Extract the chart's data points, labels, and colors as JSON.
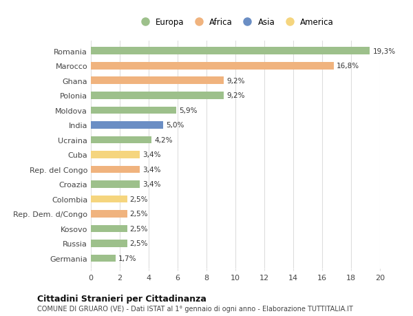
{
  "categories": [
    "Romania",
    "Marocco",
    "Ghana",
    "Polonia",
    "Moldova",
    "India",
    "Ucraina",
    "Cuba",
    "Rep. del Congo",
    "Croazia",
    "Colombia",
    "Rep. Dem. d/Congo",
    "Kosovo",
    "Russia",
    "Germania"
  ],
  "values": [
    19.3,
    16.8,
    9.2,
    9.2,
    5.9,
    5.0,
    4.2,
    3.4,
    3.4,
    3.4,
    2.5,
    2.5,
    2.5,
    2.5,
    1.7
  ],
  "labels": [
    "19,3%",
    "16,8%",
    "9,2%",
    "9,2%",
    "5,9%",
    "5,0%",
    "4,2%",
    "3,4%",
    "3,4%",
    "3,4%",
    "2,5%",
    "2,5%",
    "2,5%",
    "2,5%",
    "1,7%"
  ],
  "continent": [
    "Europa",
    "Africa",
    "Africa",
    "Europa",
    "Europa",
    "Asia",
    "Europa",
    "America",
    "Africa",
    "Europa",
    "America",
    "Africa",
    "Europa",
    "Europa",
    "Europa"
  ],
  "colors": {
    "Europa": "#9dc08b",
    "Africa": "#f0b37e",
    "Asia": "#6b8ec4",
    "America": "#f5d57e"
  },
  "legend_order": [
    "Europa",
    "Africa",
    "Asia",
    "America"
  ],
  "title": "Cittadini Stranieri per Cittadinanza",
  "subtitle": "COMUNE DI GRUARO (VE) - Dati ISTAT al 1° gennaio di ogni anno - Elaborazione TUTTITALIA.IT",
  "xlim": [
    0,
    20
  ],
  "xticks": [
    0,
    2,
    4,
    6,
    8,
    10,
    12,
    14,
    16,
    18,
    20
  ],
  "background_color": "#ffffff",
  "grid_color": "#dddddd",
  "bar_height": 0.5
}
